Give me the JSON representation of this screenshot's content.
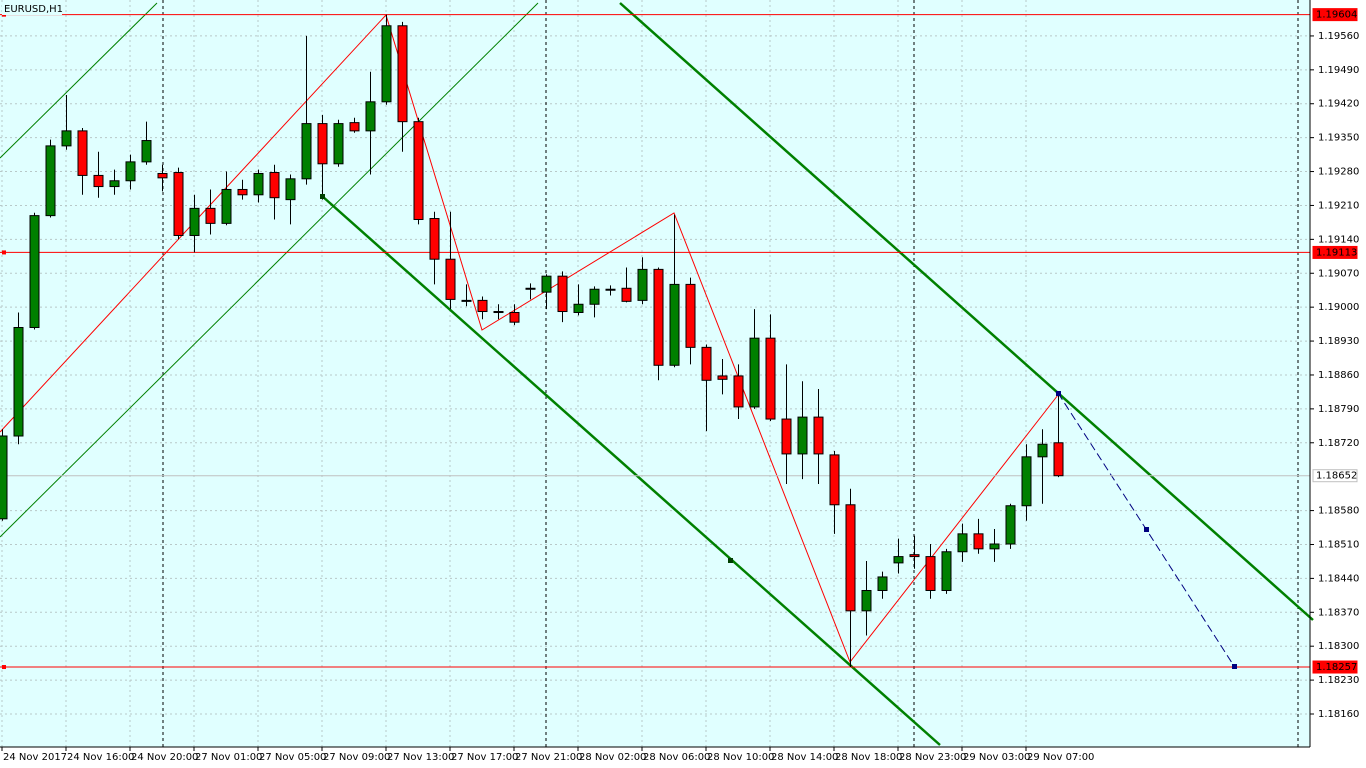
{
  "chart_data": {
    "type": "candlestick",
    "title": "EURUSD,H1",
    "categories": [
      "24 Nov 2017",
      null,
      null,
      null,
      "24 Nov 16:00",
      null,
      null,
      null,
      "24 Nov 20:00",
      null,
      null,
      null,
      "27 Nov 01:00",
      null,
      null,
      null,
      "27 Nov 05:00",
      null,
      null,
      null,
      "27 Nov 09:00",
      null,
      null,
      null,
      "27 Nov 13:00",
      null,
      null,
      null,
      "27 Nov 17:00",
      null,
      null,
      null,
      "27 Nov 21:00",
      null,
      null,
      null,
      "28 Nov 02:00",
      null,
      null,
      null,
      "28 Nov 06:00",
      null,
      null,
      null,
      "28 Nov 10:00",
      null,
      null,
      null,
      "28 Nov 14:00",
      null,
      null,
      null,
      "28 Nov 18:00",
      null,
      null,
      null,
      "28 Nov 23:00",
      null,
      null,
      null,
      "29 Nov 03:00",
      null,
      null,
      null,
      "29 Nov 07:00",
      null,
      null
    ],
    "open": [
      1.18563,
      1.18734,
      1.18958,
      1.19189,
      1.19333,
      1.19364,
      1.19272,
      1.19249,
      1.19261,
      1.193,
      1.19276,
      1.19278,
      1.19148,
      1.19204,
      1.19173,
      1.19243,
      1.19232,
      1.19278,
      1.19222,
      1.19265,
      1.19379,
      1.19296,
      1.19381,
      1.19364,
      1.19424,
      1.19581,
      1.19383,
      1.19183,
      1.19099,
      1.19014,
      1.19014,
      1.18991,
      1.18989,
      1.19039,
      1.19031,
      1.19064,
      1.18989,
      1.19006,
      1.19035,
      1.19039,
      1.19014,
      1.19078,
      1.1888,
      1.19047,
      1.18917,
      1.18858,
      1.18858,
      1.18794,
      1.18936,
      1.18769,
      1.18697,
      1.18773,
      1.18695,
      1.18592,
      1.18373,
      1.18415,
      1.18472,
      1.18489,
      1.18485,
      1.18415,
      1.18495,
      1.18532,
      1.18501,
      1.18511,
      1.1859,
      1.18691,
      1.1872
    ],
    "high": [
      1.18748,
      1.18989,
      1.19195,
      1.19346,
      1.19438,
      1.1937,
      1.19321,
      1.19284,
      1.19315,
      1.19383,
      1.19294,
      1.19288,
      1.19232,
      1.19243,
      1.1928,
      1.19263,
      1.19284,
      1.19294,
      1.19274,
      1.1956,
      1.19397,
      1.19387,
      1.19391,
      1.19486,
      1.19604,
      1.19589,
      1.19391,
      1.19197,
      1.19197,
      1.19047,
      1.19022,
      1.19006,
      1.19006,
      1.19049,
      1.19068,
      1.19074,
      1.19047,
      1.19043,
      1.19045,
      1.19082,
      1.19103,
      1.19082,
      1.19191,
      1.19061,
      1.18923,
      1.18893,
      1.18882,
      1.18996,
      1.18985,
      1.18882,
      1.18847,
      1.18831,
      1.18703,
      1.18625,
      1.18476,
      1.18454,
      1.18522,
      1.18528,
      1.18511,
      1.18501,
      1.18553,
      1.18563,
      1.18542,
      1.18594,
      1.18717,
      1.18748,
      1.1882
    ],
    "low": [
      1.18559,
      1.18717,
      1.18954,
      1.19185,
      1.19325,
      1.19232,
      1.19226,
      1.19232,
      1.19243,
      1.19294,
      1.19239,
      1.1914,
      1.19113,
      1.1915,
      1.19169,
      1.19222,
      1.19216,
      1.19181,
      1.19171,
      1.19253,
      1.19222,
      1.1929,
      1.1936,
      1.19274,
      1.19418,
      1.19321,
      1.19171,
      1.19047,
      1.18996,
      1.19002,
      1.18975,
      1.18975,
      1.18963,
      1.19016,
      1.18996,
      1.18969,
      1.18983,
      1.18979,
      1.19024,
      1.1901,
      1.19006,
      1.18849,
      1.18876,
      1.18882,
      1.18744,
      1.1882,
      1.18769,
      1.1879,
      1.18765,
      1.18635,
      1.18645,
      1.18635,
      1.18532,
      1.18257,
      1.18322,
      1.18398,
      1.1845,
      1.1846,
      1.18398,
      1.18408,
      1.18474,
      1.18491,
      1.18474,
      1.18501,
      1.18559,
      1.18594,
      1.18649
    ],
    "close": [
      1.18734,
      1.18958,
      1.19189,
      1.19333,
      1.19364,
      1.19272,
      1.19249,
      1.19261,
      1.193,
      1.19344,
      1.19267,
      1.19148,
      1.19204,
      1.19173,
      1.19243,
      1.19232,
      1.19276,
      1.19226,
      1.19265,
      1.19379,
      1.19296,
      1.19379,
      1.19364,
      1.19424,
      1.19581,
      1.19383,
      1.19181,
      1.19099,
      1.19016,
      1.19014,
      1.18991,
      1.18991,
      1.18969,
      1.19039,
      1.19064,
      1.18991,
      1.19006,
      1.19037,
      1.19037,
      1.19012,
      1.19078,
      1.1888,
      1.19047,
      1.18917,
      1.18849,
      1.18851,
      1.18794,
      1.18936,
      1.18769,
      1.18697,
      1.18773,
      1.18697,
      1.18592,
      1.18373,
      1.18415,
      1.18443,
      1.18485,
      1.18485,
      1.18415,
      1.18495,
      1.18532,
      1.18501,
      1.18511,
      1.1859,
      1.18691,
      1.18717,
      1.18652
    ],
    "up_color": "#008000",
    "down_color": "#ff0000",
    "ylim": [
      1.18096,
      1.19628
    ],
    "yticks": [
      {
        "value": 1.1956,
        "label": "1.19560"
      },
      {
        "value": 1.1949,
        "label": "1.19490"
      },
      {
        "value": 1.1942,
        "label": "1.19420"
      },
      {
        "value": 1.1935,
        "label": "1.19350"
      },
      {
        "value": 1.1928,
        "label": "1.19280"
      },
      {
        "value": 1.1921,
        "label": "1.19210"
      },
      {
        "value": 1.1914,
        "label": "1.19140"
      },
      {
        "value": 1.1907,
        "label": "1.19070"
      },
      {
        "value": 1.19,
        "label": "1.19000"
      },
      {
        "value": 1.1893,
        "label": "1.18930"
      },
      {
        "value": 1.1886,
        "label": "1.18860"
      },
      {
        "value": 1.1879,
        "label": "1.18790"
      },
      {
        "value": 1.1872,
        "label": "1.18720"
      },
      {
        "value": 1.1858,
        "label": "1.18580"
      },
      {
        "value": 1.1851,
        "label": "1.18510"
      },
      {
        "value": 1.1844,
        "label": "1.18440"
      },
      {
        "value": 1.1837,
        "label": "1.18370"
      },
      {
        "value": 1.183,
        "label": "1.18300"
      },
      {
        "value": 1.1823,
        "label": "1.18230"
      },
      {
        "value": 1.1816,
        "label": "1.18160"
      }
    ],
    "grid": true,
    "levels": [
      1.19604,
      1.19113,
      1.18257
    ],
    "level_color": "#ff0000",
    "bid": 1.18652,
    "bid_color": "#c0c0c0"
  }
}
